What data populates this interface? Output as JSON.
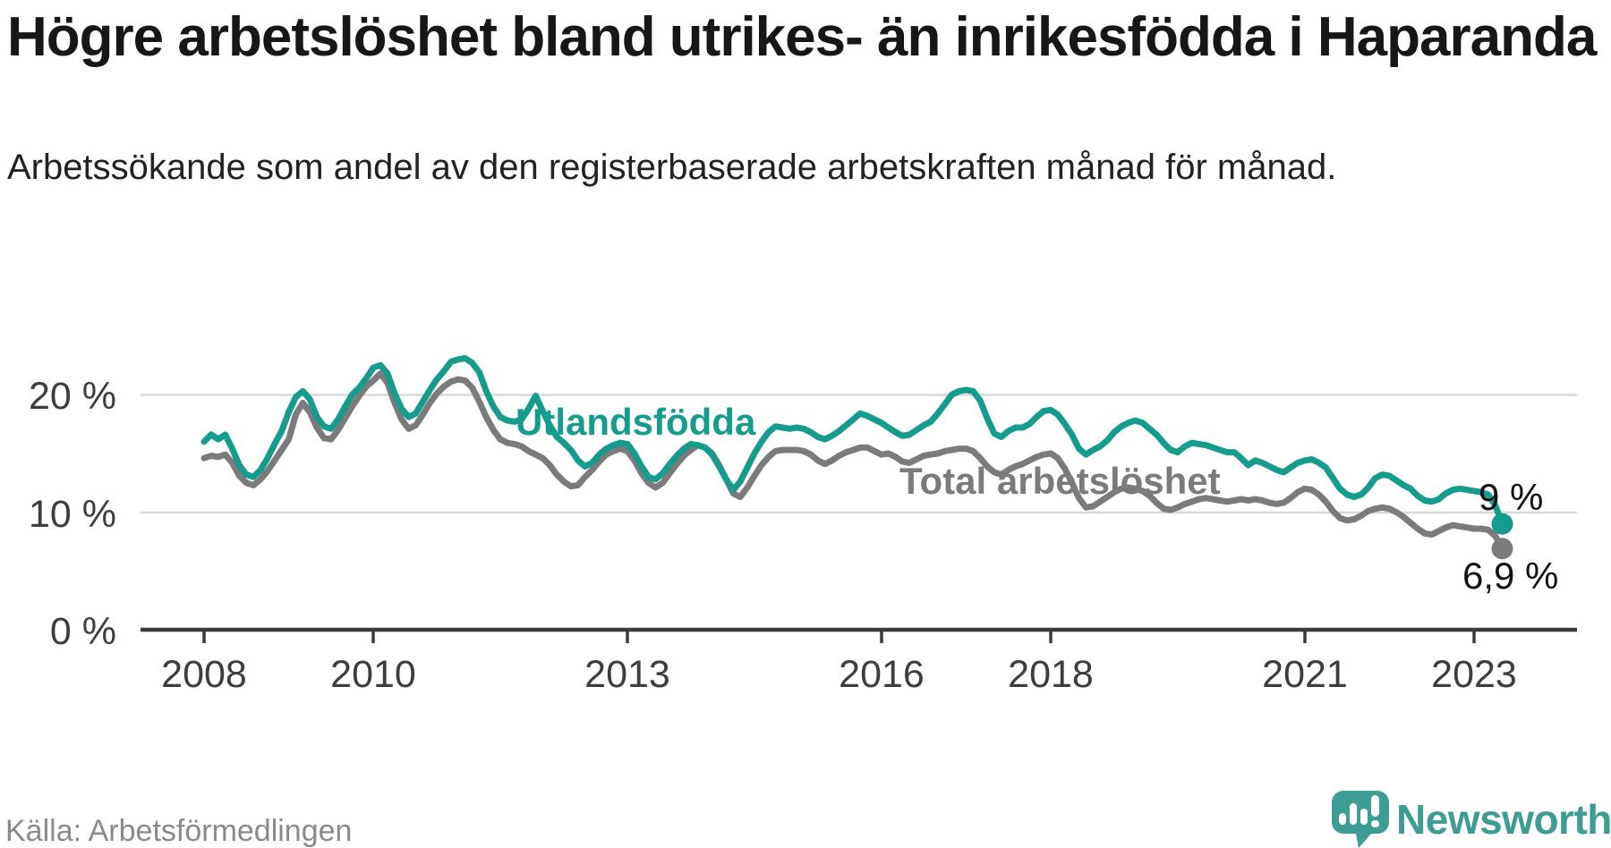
{
  "title": "Högre arbetslöshet bland utrikes- än inrikesfödda i Haparanda",
  "subtitle": "Arbetssökande som andel av den registerbaserade arbetskraften månad för månad.",
  "source": "Källa: Arbetsförmedlingen",
  "logo": {
    "brand": "Newsworthy",
    "icon": "newsworthy-speech-bubble-barchart-icon"
  },
  "colors": {
    "foreign_born_line": "#169c8c",
    "total_line": "#7b7b7b",
    "grid": "#d8d8d8",
    "axis": "#3b3b3b",
    "brand": "#3e9d92"
  },
  "chart_data": {
    "type": "line",
    "title": "Högre arbetslöshet bland utrikes- än inrikesfödda i Haparanda",
    "subtitle": "Arbetssökande som andel av den registerbaserade arbetskraften månad för månad.",
    "unit": "%",
    "x_start": "2008-01",
    "x_end": "2023-05",
    "frequency": "monthly",
    "ylim": [
      0,
      24.5
    ],
    "grid": "horizontal",
    "legend": "inline-labels",
    "y_ticks": [
      {
        "value": 20,
        "label": "20 %"
      },
      {
        "value": 10,
        "label": "10 %"
      },
      {
        "value": 0,
        "label": "0 %"
      }
    ],
    "x_ticks": [
      {
        "year": 2008,
        "label": "2008"
      },
      {
        "year": 2010,
        "label": "2010"
      },
      {
        "year": 2013,
        "label": "2013"
      },
      {
        "year": 2016,
        "label": "2016"
      },
      {
        "year": 2018,
        "label": "2018"
      },
      {
        "year": 2021,
        "label": "2021"
      },
      {
        "year": 2023,
        "label": "2023"
      }
    ],
    "series": [
      {
        "name": "Utlandsfödda",
        "color": "#169c8c",
        "end_label": "9 %",
        "end_value": 9.0,
        "values": [
          16.0,
          16.6,
          16.2,
          16.6,
          15.4,
          14.0,
          13.2,
          13.0,
          13.6,
          14.6,
          15.8,
          16.9,
          18.5,
          19.8,
          20.3,
          19.6,
          18.1,
          17.3,
          17.1,
          17.9,
          19.0,
          20.0,
          20.6,
          21.4,
          22.3,
          22.5,
          21.8,
          20.1,
          18.8,
          18.1,
          18.4,
          19.4,
          20.4,
          21.3,
          22.0,
          22.8,
          23.0,
          23.1,
          22.7,
          21.9,
          20.3,
          19.0,
          18.1,
          17.8,
          17.7,
          17.9,
          18.8,
          19.9,
          18.6,
          17.4,
          16.4,
          15.9,
          15.3,
          14.4,
          13.9,
          14.2,
          14.9,
          15.4,
          15.7,
          15.9,
          15.8,
          15.0,
          13.9,
          13.0,
          12.8,
          13.3,
          14.1,
          14.8,
          15.4,
          15.8,
          15.7,
          15.5,
          14.9,
          13.9,
          12.8,
          11.9,
          12.6,
          13.8,
          15.0,
          16.0,
          16.8,
          17.3,
          17.2,
          17.1,
          17.2,
          17.1,
          16.8,
          16.4,
          16.2,
          16.5,
          16.9,
          17.4,
          17.9,
          18.4,
          18.2,
          17.9,
          17.6,
          17.2,
          16.8,
          16.5,
          16.6,
          17.0,
          17.4,
          17.7,
          18.4,
          19.2,
          20.0,
          20.3,
          20.4,
          20.3,
          19.5,
          18.0,
          16.7,
          16.4,
          16.9,
          17.2,
          17.2,
          17.5,
          18.1,
          18.6,
          18.7,
          18.3,
          17.5,
          16.6,
          15.4,
          14.9,
          15.3,
          15.6,
          16.1,
          16.8,
          17.3,
          17.6,
          17.8,
          17.6,
          17.1,
          16.6,
          15.9,
          15.3,
          15.1,
          15.6,
          15.9,
          15.8,
          15.7,
          15.5,
          15.3,
          15.1,
          15.1,
          14.6,
          14.0,
          14.4,
          14.2,
          13.9,
          13.6,
          13.4,
          13.8,
          14.2,
          14.4,
          14.5,
          14.2,
          13.8,
          12.9,
          12.0,
          11.5,
          11.3,
          11.5,
          12.1,
          12.9,
          13.2,
          13.1,
          12.7,
          12.3,
          12.0,
          11.4,
          11.0,
          10.9,
          11.1,
          11.6,
          11.9,
          12.0,
          11.9,
          11.8,
          11.7,
          11.5,
          10.6,
          9.0
        ]
      },
      {
        "name": "Total arbetslöshet",
        "color": "#7b7b7b",
        "end_label": "6,9 %",
        "end_value": 6.9,
        "values": [
          14.6,
          14.8,
          14.7,
          14.9,
          14.2,
          13.1,
          12.5,
          12.3,
          12.8,
          13.5,
          14.4,
          15.3,
          16.2,
          18.3,
          19.3,
          18.5,
          17.2,
          16.3,
          16.2,
          17.0,
          18.0,
          19.0,
          19.9,
          20.7,
          21.2,
          21.8,
          21.0,
          19.3,
          17.9,
          17.1,
          17.4,
          18.3,
          19.3,
          20.1,
          20.7,
          21.1,
          21.3,
          21.2,
          20.6,
          19.4,
          18.1,
          17.0,
          16.2,
          15.9,
          15.8,
          15.6,
          15.2,
          14.9,
          14.6,
          14.0,
          13.2,
          12.6,
          12.2,
          12.3,
          13.0,
          13.6,
          14.3,
          14.9,
          15.2,
          15.4,
          15.2,
          14.4,
          13.3,
          12.5,
          12.1,
          12.5,
          13.3,
          14.1,
          14.8,
          15.3,
          15.7,
          15.5,
          15.0,
          14.0,
          12.8,
          11.6,
          11.3,
          12.1,
          13.1,
          14.0,
          14.7,
          15.2,
          15.3,
          15.3,
          15.3,
          15.2,
          14.9,
          14.4,
          14.1,
          14.4,
          14.8,
          15.1,
          15.3,
          15.5,
          15.5,
          15.2,
          14.9,
          15.0,
          14.7,
          14.3,
          14.2,
          14.5,
          14.8,
          14.9,
          15.0,
          15.2,
          15.3,
          15.4,
          15.4,
          15.2,
          14.6,
          13.9,
          13.4,
          13.2,
          13.6,
          13.9,
          14.1,
          14.4,
          14.7,
          14.9,
          15.0,
          14.6,
          13.7,
          12.5,
          11.2,
          10.4,
          10.5,
          10.9,
          11.3,
          11.7,
          12.0,
          12.1,
          12.0,
          11.8,
          11.4,
          10.8,
          10.3,
          10.2,
          10.4,
          10.7,
          10.9,
          11.1,
          11.2,
          11.1,
          11.0,
          10.9,
          11.0,
          11.1,
          11.0,
          11.1,
          11.0,
          10.8,
          10.7,
          10.8,
          11.2,
          11.7,
          12.0,
          11.9,
          11.5,
          10.9,
          10.1,
          9.5,
          9.3,
          9.4,
          9.7,
          10.1,
          10.3,
          10.4,
          10.3,
          10.0,
          9.6,
          9.1,
          8.6,
          8.2,
          8.1,
          8.4,
          8.7,
          8.9,
          8.8,
          8.7,
          8.6,
          8.6,
          8.5,
          8.0,
          6.9
        ]
      }
    ]
  }
}
